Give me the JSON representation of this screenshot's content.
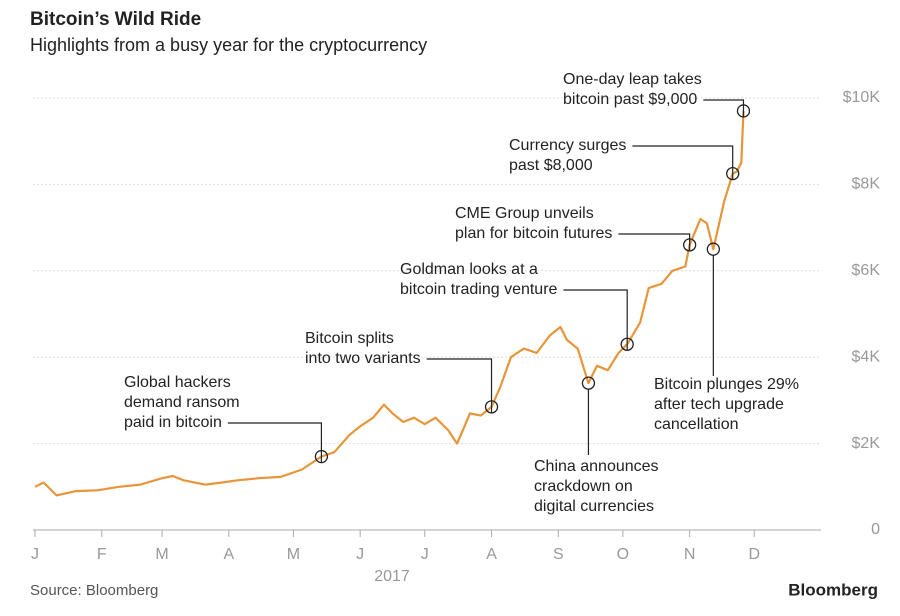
{
  "chart_data": {
    "type": "line",
    "title": "Bitcoin’s Wild Ride",
    "subtitle": "Highlights from a busy year for the cryptocurrency",
    "x_label": "2017",
    "source": "Source: Bloomberg",
    "brand": "Bloomberg",
    "xlim": [
      1,
      366
    ],
    "xticks": [
      {
        "value": 1,
        "label": "J"
      },
      {
        "value": 32,
        "label": "F"
      },
      {
        "value": 60,
        "label": "M"
      },
      {
        "value": 91,
        "label": "A"
      },
      {
        "value": 121,
        "label": "M"
      },
      {
        "value": 152,
        "label": "J"
      },
      {
        "value": 182,
        "label": "J"
      },
      {
        "value": 213,
        "label": "A"
      },
      {
        "value": 244,
        "label": "S"
      },
      {
        "value": 274,
        "label": "O"
      },
      {
        "value": 305,
        "label": "N"
      },
      {
        "value": 335,
        "label": "D"
      }
    ],
    "ylim": [
      0,
      10000
    ],
    "yticks": [
      0,
      {
        "value": 2000,
        "label": "$2K"
      },
      {
        "value": 4000,
        "label": "$4K"
      },
      {
        "value": 6000,
        "label": "$6K"
      },
      {
        "value": 8000,
        "label": "$8K"
      },
      {
        "value": 10000,
        "label": "$10K"
      }
    ],
    "grid": true,
    "x": [
      1,
      5,
      11,
      20,
      30,
      40,
      50,
      60,
      65,
      70,
      80,
      88,
      95,
      105,
      115,
      125,
      134,
      140,
      147,
      152,
      158,
      163,
      167,
      172,
      177,
      182,
      187,
      193,
      197,
      203,
      208,
      213,
      217,
      222,
      228,
      234,
      240,
      245,
      248,
      253,
      258,
      262,
      267,
      272,
      276,
      282,
      286,
      292,
      297,
      303,
      305,
      310,
      313,
      316,
      321,
      325,
      327,
      329,
      330
    ],
    "series": [
      {
        "color": "#e8953a",
        "values": [
          1000,
          1100,
          800,
          900,
          920,
          1000,
          1050,
          1200,
          1250,
          1150,
          1050,
          1100,
          1150,
          1200,
          1230,
          1400,
          1700,
          1800,
          2200,
          2400,
          2600,
          2900,
          2700,
          2500,
          2600,
          2450,
          2600,
          2300,
          2000,
          2700,
          2650,
          2850,
          3300,
          4000,
          4200,
          4100,
          4500,
          4700,
          4400,
          4200,
          3400,
          3800,
          3700,
          4100,
          4300,
          4800,
          5600,
          5700,
          6000,
          6100,
          6600,
          7200,
          7100,
          6500,
          7600,
          8250,
          8300,
          8500,
          9700
        ]
      }
    ],
    "annotations": [
      {
        "lines": [
          "Global hackers",
          "demand ransom",
          "paid in bitcoin"
        ],
        "x": 134,
        "y": 1700
      },
      {
        "lines": [
          "Bitcoin splits",
          "into two variants"
        ],
        "x": 213,
        "y": 2850
      },
      {
        "lines": [
          "Goldman looks at a",
          "bitcoin trading venture"
        ],
        "x": 276,
        "y": 4300
      },
      {
        "lines": [
          "CME Group unveils",
          "plan for bitcoin futures"
        ],
        "x": 305,
        "y": 6600
      },
      {
        "lines": [
          "Currency surges",
          "past $8,000"
        ],
        "x": 325,
        "y": 8250
      },
      {
        "lines": [
          "One-day leap takes",
          "bitcoin past $9,000"
        ],
        "x": 330,
        "y": 9700
      },
      {
        "lines": [
          "China announces",
          "crackdown on",
          "digital currencies"
        ],
        "x": 258,
        "y": 3400
      },
      {
        "lines": [
          "Bitcoin plunges 29%",
          "after tech upgrade",
          "cancellation"
        ],
        "x": 316,
        "y": 6500
      }
    ]
  }
}
